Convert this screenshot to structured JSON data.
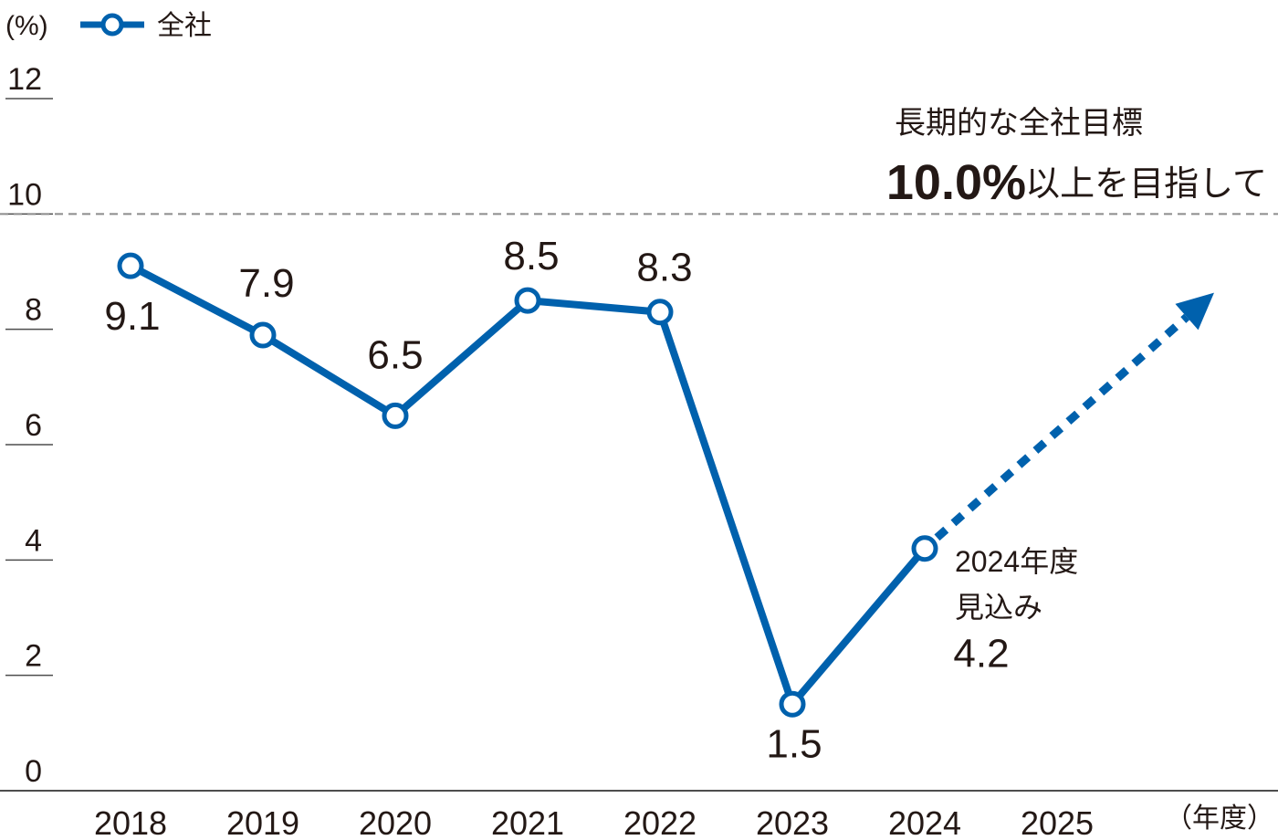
{
  "chart_data": {
    "type": "line",
    "yunit": "(%)",
    "xunit": "（年度）",
    "ylim": [
      0,
      12
    ],
    "yticks": [
      "0",
      "2",
      "4",
      "6",
      "8",
      "10",
      "12"
    ],
    "categories": [
      "2018",
      "2019",
      "2020",
      "2021",
      "2022",
      "2023",
      "2024",
      "2025"
    ],
    "series": [
      {
        "name": "全社",
        "color": "#0061ad",
        "x": [
          "2018",
          "2019",
          "2020",
          "2021",
          "2022",
          "2023",
          "2024"
        ],
        "values": [
          9.1,
          7.9,
          6.5,
          8.5,
          8.3,
          1.5,
          4.2
        ],
        "labels": [
          "9.1",
          "7.9",
          "6.5",
          "8.5",
          "8.3",
          "1.5",
          "4.2"
        ]
      }
    ],
    "forecast_note": [
      "2024年度",
      "見込み"
    ],
    "target": {
      "value": 10,
      "line_color": "#8c8c8c",
      "caption": "長期的な全社目標",
      "headline_value": "10.0%",
      "headline_text": "以上を目指して"
    },
    "trend_arrow": {
      "from_x": "2024",
      "from_y": 4.2,
      "to_x": "2025",
      "to_y": 8.0,
      "style": "dotted"
    },
    "grid": false,
    "legend": "top-left"
  }
}
